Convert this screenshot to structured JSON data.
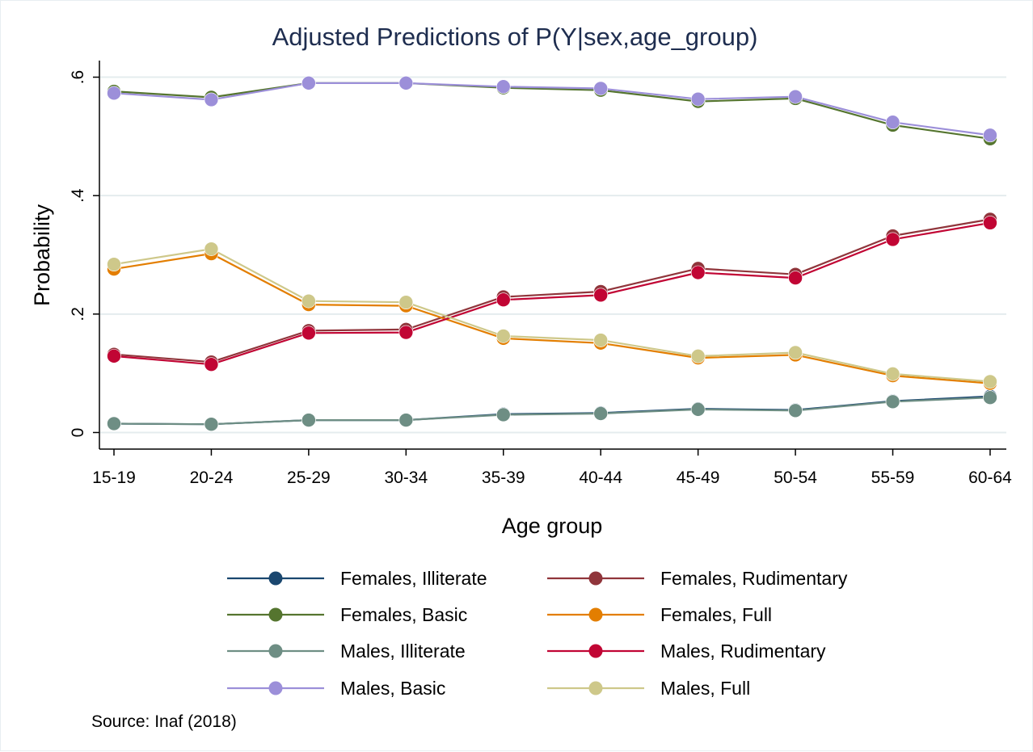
{
  "chart_data": {
    "type": "line",
    "title": "Adjusted Predictions of P(Y|sex,age_group)",
    "xlabel": "Age group",
    "ylabel": "Probability",
    "categories": [
      "15-19",
      "20-24",
      "25-29",
      "30-34",
      "35-39",
      "40-44",
      "45-49",
      "50-54",
      "55-59",
      "60-64"
    ],
    "y_ticks": [
      0,
      0.2,
      0.4,
      0.6
    ],
    "y_tick_labels": [
      "0",
      ".2",
      ".4",
      ".6"
    ],
    "ylim": [
      -0.028,
      0.628
    ],
    "grid": true,
    "legend_position": "bottom",
    "note": "Source: Inaf (2018)",
    "series": [
      {
        "name": "Females, Illiterate",
        "color": "#1a476f",
        "values": [
          0.015,
          0.014,
          0.021,
          0.021,
          0.031,
          0.033,
          0.04,
          0.038,
          0.053,
          0.061
        ]
      },
      {
        "name": "Females, Basic",
        "color": "#55752f",
        "values": [
          0.576,
          0.566,
          0.59,
          0.59,
          0.582,
          0.578,
          0.559,
          0.564,
          0.519,
          0.496
        ]
      },
      {
        "name": "Males, Illiterate",
        "color": "#6e8e84",
        "values": [
          0.015,
          0.014,
          0.021,
          0.021,
          0.03,
          0.032,
          0.039,
          0.037,
          0.052,
          0.059
        ]
      },
      {
        "name": "Males, Basic",
        "color": "#9c8fd9",
        "values": [
          0.573,
          0.562,
          0.59,
          0.59,
          0.584,
          0.581,
          0.563,
          0.567,
          0.524,
          0.502
        ]
      },
      {
        "name": "Females, Rudimentary",
        "color": "#90353b",
        "values": [
          0.132,
          0.119,
          0.172,
          0.174,
          0.229,
          0.238,
          0.277,
          0.267,
          0.332,
          0.36
        ]
      },
      {
        "name": "Females, Full",
        "color": "#e37e00",
        "values": [
          0.276,
          0.302,
          0.216,
          0.214,
          0.159,
          0.151,
          0.126,
          0.131,
          0.096,
          0.083
        ]
      },
      {
        "name": "Males, Rudimentary",
        "color": "#c10534",
        "values": [
          0.129,
          0.115,
          0.168,
          0.169,
          0.224,
          0.232,
          0.27,
          0.261,
          0.326,
          0.354
        ]
      },
      {
        "name": "Males, Full",
        "color": "#cec88a",
        "values": [
          0.284,
          0.31,
          0.222,
          0.22,
          0.163,
          0.156,
          0.129,
          0.135,
          0.099,
          0.086
        ]
      }
    ]
  }
}
